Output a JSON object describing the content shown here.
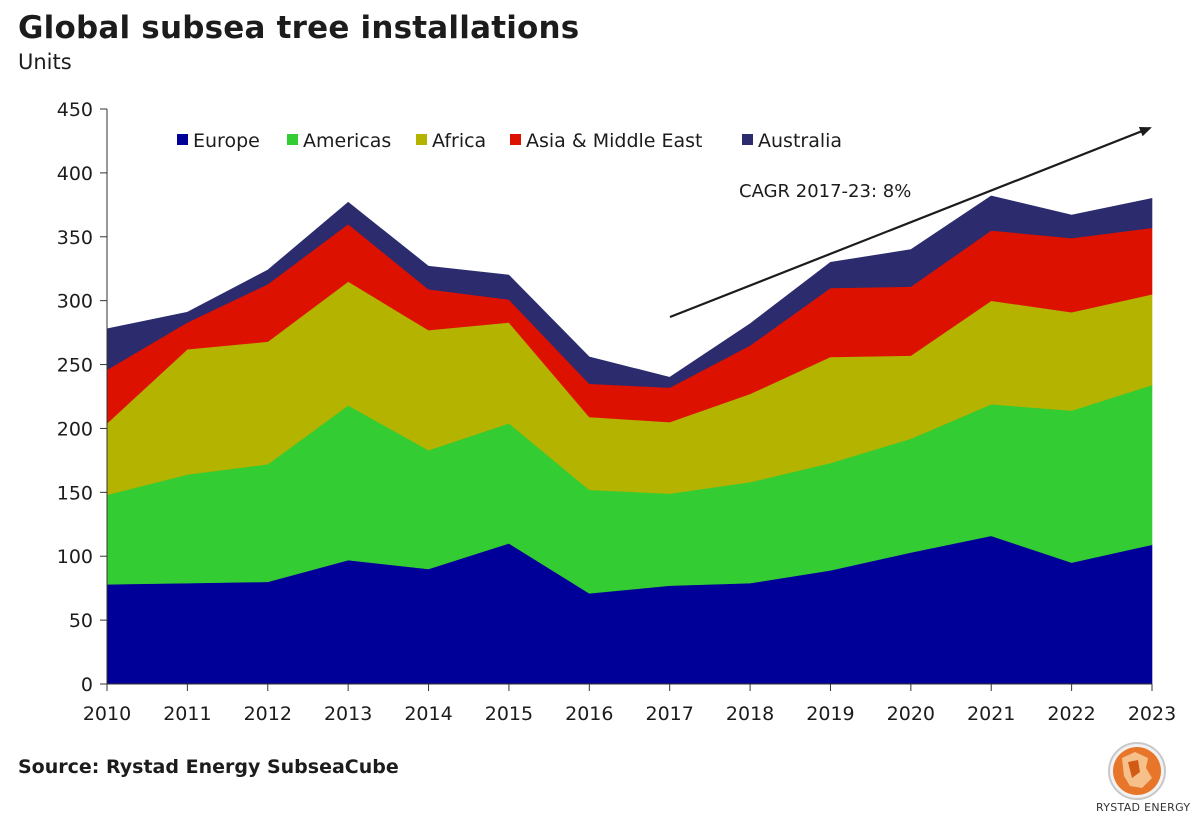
{
  "title": "Global subsea tree installations",
  "subtitle": "Units",
  "source": "Source: Rystad Energy SubseaCube",
  "logo_text": "RYSTAD ENERGY",
  "chart_data": {
    "type": "area",
    "stacked": true,
    "title": "Global subsea tree installations",
    "ylabel": "Units",
    "xlabel": "",
    "ylim": [
      0,
      450
    ],
    "yticks": [
      0,
      50,
      100,
      150,
      200,
      250,
      300,
      350,
      400,
      450
    ],
    "categories": [
      "2010",
      "2011",
      "2012",
      "2013",
      "2014",
      "2015",
      "2016",
      "2017",
      "2018",
      "2019",
      "2020",
      "2021",
      "2022",
      "2023"
    ],
    "legend_position": "top",
    "series": [
      {
        "name": "Europe",
        "color": "#000099",
        "values": [
          78,
          79,
          80,
          97,
          90,
          110,
          71,
          77,
          79,
          89,
          103,
          116,
          95,
          109
        ]
      },
      {
        "name": "Americas",
        "color": "#33cc33",
        "values": [
          70,
          85,
          92,
          121,
          93,
          94,
          81,
          72,
          79,
          84,
          89,
          103,
          119,
          125
        ]
      },
      {
        "name": "Africa",
        "color": "#b3b300",
        "values": [
          56,
          98,
          96,
          97,
          94,
          79,
          57,
          56,
          69,
          83,
          65,
          81,
          77,
          71
        ]
      },
      {
        "name": "Asia & Middle East",
        "color": "#dd1100",
        "values": [
          42,
          21,
          45,
          45,
          32,
          18,
          26,
          27,
          38,
          54,
          54,
          55,
          58,
          52
        ]
      },
      {
        "name": "Australia",
        "color": "#2b2b6e",
        "values": [
          32,
          8,
          11,
          17,
          18,
          19,
          21,
          8,
          17,
          20,
          29,
          27,
          18,
          23
        ]
      }
    ],
    "annotations": [
      {
        "text": "CAGR 2017-23: 8%"
      }
    ]
  }
}
